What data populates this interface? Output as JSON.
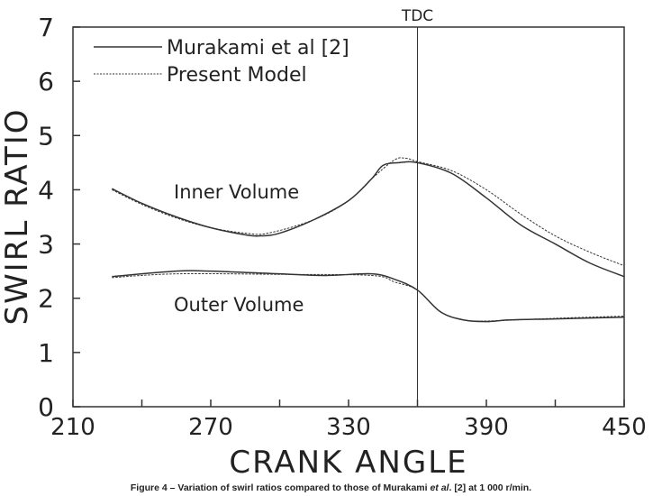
{
  "chart_data": {
    "type": "line",
    "xlabel": "CRANK ANGLE",
    "ylabel": "SWIRL RATIO",
    "xlim": [
      210,
      450
    ],
    "ylim": [
      0,
      7
    ],
    "xticks": [
      210,
      270,
      330,
      390,
      450
    ],
    "yticks": [
      0,
      1,
      2,
      3,
      4,
      5,
      6,
      7
    ],
    "legend": {
      "placement": "top-left",
      "entries": [
        "Murakami et al [2]",
        "Present Model"
      ]
    },
    "annotations": {
      "tdc": {
        "label": "TDC",
        "x": 360
      },
      "inner": "Inner Volume",
      "outer": "Outer Volume"
    },
    "series": [
      {
        "name": "Murakami et al [2] - Inner Volume",
        "style": "solid",
        "x": [
          227,
          240,
          255,
          270,
          285,
          292,
          300,
          315,
          330,
          340,
          345,
          352,
          360,
          375,
          390,
          405,
          420,
          435,
          450
        ],
        "y": [
          4.02,
          3.75,
          3.5,
          3.3,
          3.17,
          3.15,
          3.2,
          3.45,
          3.8,
          4.2,
          4.45,
          4.5,
          4.5,
          4.3,
          3.85,
          3.35,
          3.0,
          2.65,
          2.4
        ]
      },
      {
        "name": "Present Model - Inner Volume",
        "style": "dashed",
        "x": [
          227,
          240,
          255,
          270,
          285,
          295,
          315,
          330,
          340,
          350,
          355,
          360,
          375,
          390,
          405,
          420,
          435,
          450
        ],
        "y": [
          4.0,
          3.73,
          3.48,
          3.3,
          3.2,
          3.2,
          3.45,
          3.8,
          4.2,
          4.55,
          4.58,
          4.52,
          4.35,
          4.0,
          3.55,
          3.15,
          2.85,
          2.6
        ]
      },
      {
        "name": "Murakami et al [2] - Outer Volume",
        "style": "solid",
        "x": [
          227,
          255,
          270,
          300,
          320,
          340,
          350,
          360,
          370,
          380,
          390,
          400,
          420,
          450
        ],
        "y": [
          2.4,
          2.5,
          2.5,
          2.45,
          2.42,
          2.45,
          2.35,
          2.15,
          1.75,
          1.6,
          1.57,
          1.6,
          1.62,
          1.65
        ]
      },
      {
        "name": "Present Model - Outer Volume",
        "style": "dashed",
        "x": [
          227,
          255,
          300,
          340,
          350,
          360,
          370,
          380,
          390,
          420,
          450
        ],
        "y": [
          2.38,
          2.45,
          2.44,
          2.42,
          2.3,
          2.15,
          1.75,
          1.6,
          1.58,
          1.63,
          1.67
        ]
      }
    ]
  },
  "caption": {
    "part1": "Figure 4 – Variation of swirl ratios compared to those of Murakami ",
    "italic": "et al",
    "part2": ". [2] at 1 000 r/min."
  }
}
